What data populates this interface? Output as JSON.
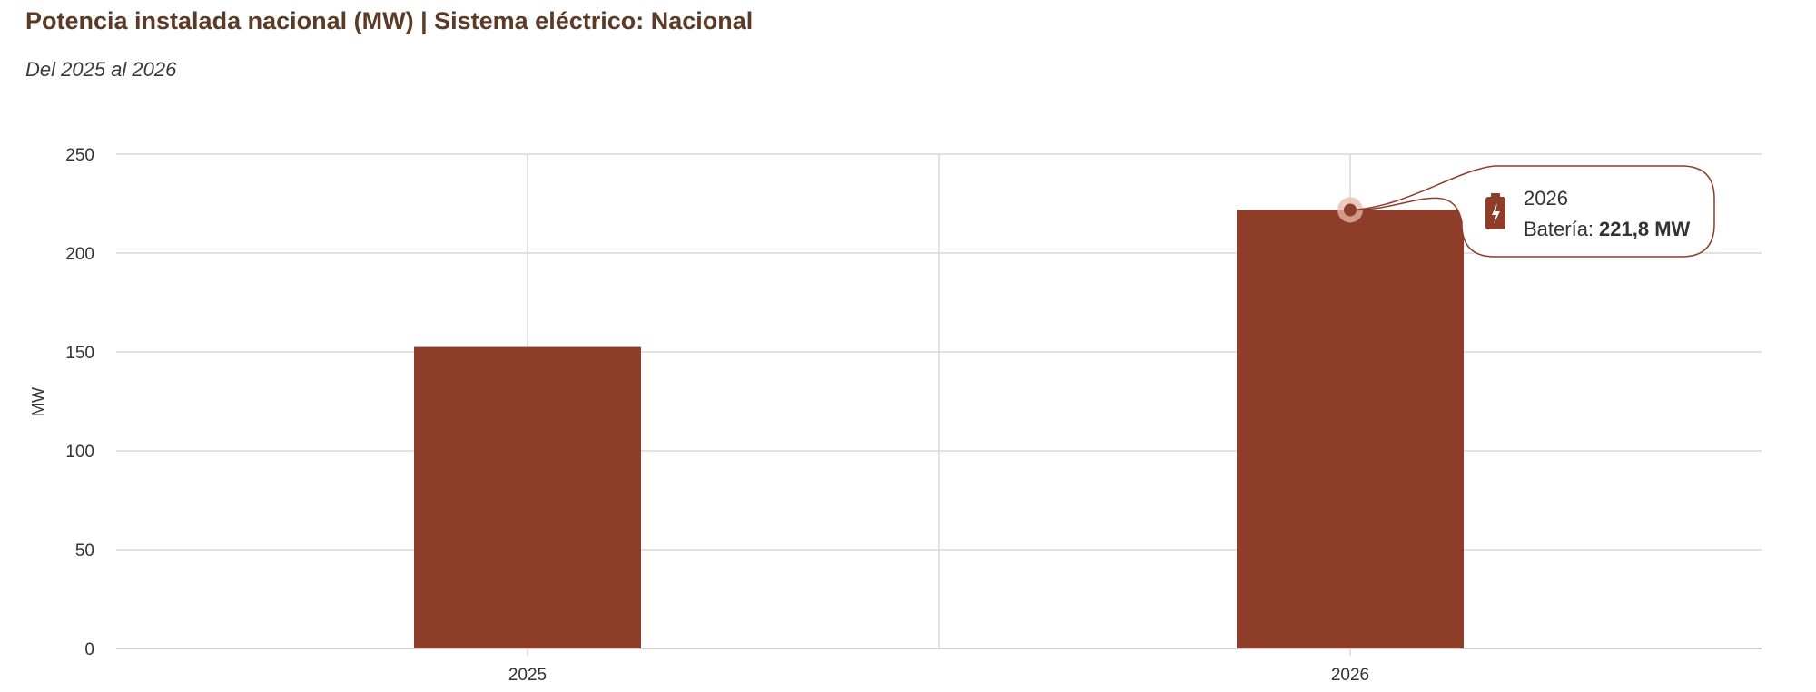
{
  "header": {
    "title": "Potencia instalada nacional (MW) | Sistema eléctrico: Nacional",
    "subtitle": "Del 2025 al 2026"
  },
  "colors": {
    "bar": "#8e3e28",
    "title": "#5c3a26",
    "tooltip_border": "#8e3e28"
  },
  "chart_data": {
    "type": "bar",
    "categories": [
      "2025",
      "2026"
    ],
    "series": [
      {
        "name": "Batería",
        "values": [
          152.5,
          221.8
        ]
      }
    ],
    "ylabel": "MW",
    "ylim": [
      0,
      250
    ],
    "yticks": [
      0,
      50,
      100,
      150,
      200,
      250
    ],
    "grid": true,
    "tooltip": {
      "category": "2026",
      "label": "Batería:",
      "value": "221,8 MW",
      "icon": "battery-icon"
    }
  }
}
